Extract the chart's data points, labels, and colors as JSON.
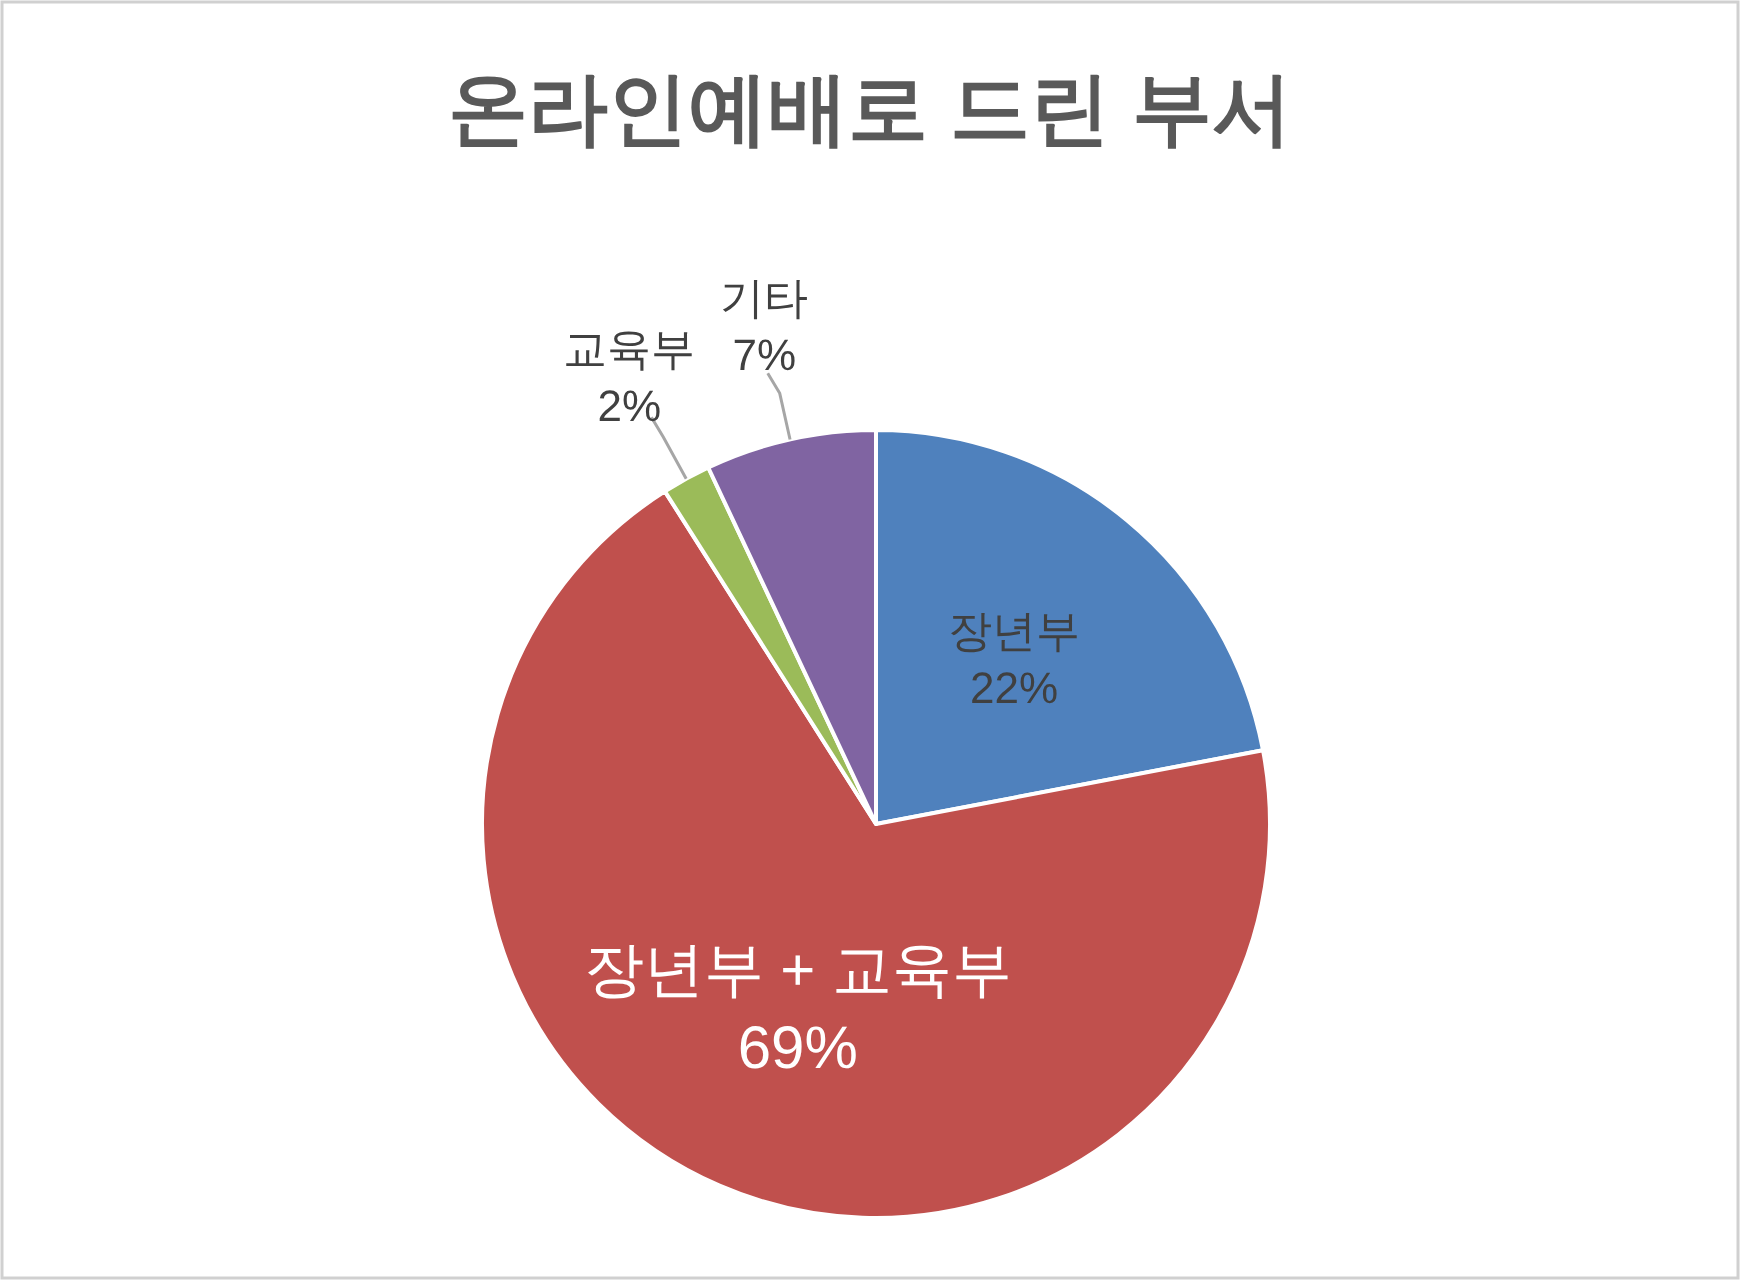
{
  "chart_data": {
    "type": "pie",
    "title": "온라인예배로 드린 부서",
    "categories": [
      "장년부",
      "장년부 + 교육부",
      "교육부",
      "기타"
    ],
    "values": [
      22,
      69,
      2,
      7
    ],
    "value_labels": [
      "22%",
      "69%",
      "2%",
      "7%"
    ],
    "colors": [
      "#4f81bd",
      "#c0504d",
      "#9bbb59",
      "#8064a2"
    ]
  }
}
